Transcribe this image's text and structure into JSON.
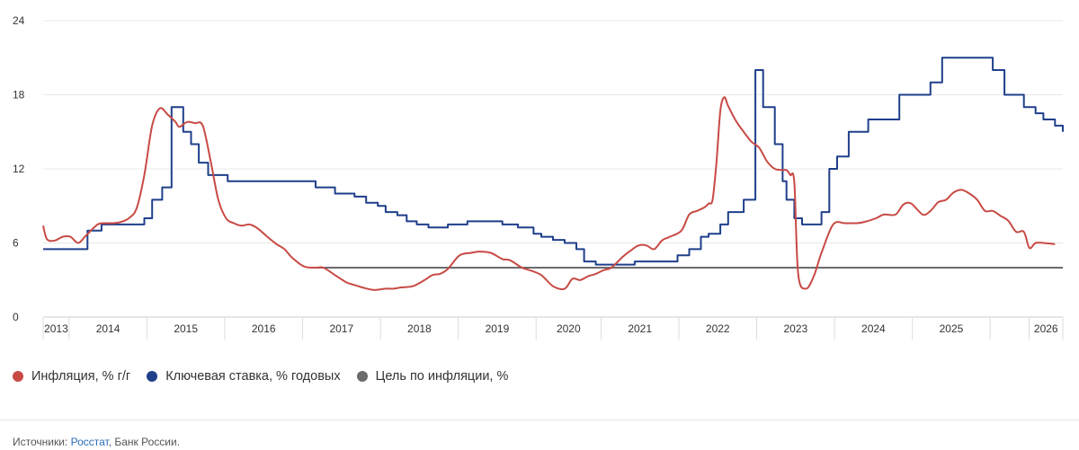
{
  "chart_data": {
    "type": "line",
    "title": "",
    "xlabel": "",
    "ylabel": "",
    "ylim": [
      0,
      24
    ],
    "xlim": [
      2013.0,
      2026.1
    ],
    "yticks": [
      "0",
      "6",
      "12",
      "18",
      "24"
    ],
    "xticks": [
      {
        "label": "2013",
        "start": 2013.0,
        "end": 2013.333
      },
      {
        "label": "2014",
        "start": 2013.333,
        "end": 2014.333
      },
      {
        "label": "2015",
        "start": 2014.333,
        "end": 2015.333
      },
      {
        "label": "2016",
        "start": 2015.333,
        "end": 2016.333
      },
      {
        "label": "2017",
        "start": 2016.333,
        "end": 2017.333
      },
      {
        "label": "2018",
        "start": 2017.333,
        "end": 2018.333
      },
      {
        "label": "2019",
        "start": 2018.333,
        "end": 2019.333
      },
      {
        "label": "2020",
        "start": 2019.333,
        "end": 2020.167
      },
      {
        "label": "2021",
        "start": 2020.167,
        "end": 2021.167
      },
      {
        "label": "2022",
        "start": 2021.167,
        "end": 2022.167
      },
      {
        "label": "2023",
        "start": 2022.167,
        "end": 2023.167
      },
      {
        "label": "2024",
        "start": 2023.167,
        "end": 2024.167
      },
      {
        "label": "2025",
        "start": 2024.167,
        "end": 2025.167
      },
      {
        "label": "2026",
        "start": 2025.667,
        "end": 2026.1
      }
    ],
    "series": [
      {
        "name": "Инфляция, % г/г",
        "color": "#c84a45",
        "style": "smooth",
        "x": [
          2013.0,
          2013.05,
          2013.15,
          2013.25,
          2013.35,
          2013.45,
          2013.55,
          2013.7,
          2013.8,
          2013.9,
          2014.0,
          2014.1,
          2014.2,
          2014.3,
          2014.4,
          2014.5,
          2014.6,
          2014.7,
          2014.75,
          2014.85,
          2014.95,
          2015.05,
          2015.15,
          2015.25,
          2015.35,
          2015.45,
          2015.55,
          2015.65,
          2015.75,
          2015.9,
          2016.0,
          2016.1,
          2016.2,
          2016.35,
          2016.5,
          2016.6,
          2016.75,
          2016.9,
          2017.0,
          2017.1,
          2017.25,
          2017.4,
          2017.5,
          2017.6,
          2017.75,
          2017.9,
          2018.0,
          2018.1,
          2018.2,
          2018.35,
          2018.5,
          2018.6,
          2018.75,
          2018.9,
          2019.0,
          2019.15,
          2019.25,
          2019.4,
          2019.55,
          2019.7,
          2019.8,
          2019.9,
          2020.0,
          2020.1,
          2020.2,
          2020.3,
          2020.45,
          2020.55,
          2020.65,
          2020.75,
          2020.85,
          2020.95,
          2021.05,
          2021.2,
          2021.3,
          2021.4,
          2021.5,
          2021.55,
          2021.6,
          2021.65,
          2021.7,
          2021.75,
          2021.8,
          2021.9,
          2022.0,
          2022.1,
          2022.2,
          2022.3,
          2022.4,
          2022.5,
          2022.55,
          2022.6,
          2022.65,
          2022.7,
          2022.8,
          2022.9,
          2023.0,
          2023.15,
          2023.3,
          2023.45,
          2023.55,
          2023.7,
          2023.8,
          2023.95,
          2024.05,
          2024.15,
          2024.3,
          2024.4,
          2024.5,
          2024.6,
          2024.7,
          2024.8,
          2024.9,
          2025.0,
          2025.1,
          2025.2,
          2025.3,
          2025.4,
          2025.5,
          2025.6,
          2025.67,
          2025.75,
          2025.85,
          2026.0
        ],
        "values": [
          7.4,
          6.3,
          6.2,
          6.5,
          6.5,
          6.0,
          6.6,
          7.5,
          7.6,
          7.6,
          7.7,
          8.0,
          8.8,
          11.5,
          15.5,
          16.9,
          16.4,
          15.8,
          15.4,
          15.8,
          15.7,
          15.5,
          12.7,
          9.5,
          8.0,
          7.6,
          7.4,
          7.5,
          7.2,
          6.4,
          5.9,
          5.5,
          4.8,
          4.1,
          4.0,
          4.0,
          3.4,
          2.8,
          2.6,
          2.4,
          2.2,
          2.3,
          2.3,
          2.4,
          2.5,
          3.0,
          3.4,
          3.5,
          3.9,
          5.0,
          5.2,
          5.3,
          5.2,
          4.7,
          4.6,
          4.0,
          3.8,
          3.4,
          2.5,
          2.3,
          3.1,
          3.0,
          3.3,
          3.5,
          3.8,
          4.0,
          4.9,
          5.4,
          5.8,
          5.8,
          5.5,
          6.2,
          6.5,
          7.0,
          8.3,
          8.6,
          8.9,
          9.2,
          9.5,
          12.5,
          16.7,
          17.8,
          17.1,
          15.9,
          15.0,
          14.2,
          13.7,
          12.6,
          12.0,
          11.9,
          11.9,
          11.5,
          10.9,
          3.5,
          2.3,
          3.3,
          5.2,
          7.5,
          7.6,
          7.6,
          7.7,
          8.0,
          8.3,
          8.3,
          9.1,
          9.2,
          8.3,
          8.6,
          9.3,
          9.5,
          10.1,
          10.3,
          10.0,
          9.5,
          8.6,
          8.6,
          8.2,
          7.8,
          6.9,
          6.9,
          5.6,
          6.0,
          6.0,
          5.9
        ]
      },
      {
        "name": "Ключевая ставка, % годовых",
        "color": "#1f3f8b",
        "style": "step",
        "x": [
          2013.0,
          2013.5,
          2013.57,
          2013.75,
          2014.2,
          2014.3,
          2014.4,
          2014.53,
          2014.65,
          2014.8,
          2014.9,
          2015.0,
          2015.12,
          2015.37,
          2015.45,
          2015.55,
          2016.0,
          2016.5,
          2016.75,
          2016.9,
          2017.0,
          2017.15,
          2017.3,
          2017.4,
          2017.55,
          2017.67,
          2017.8,
          2017.95,
          2018.2,
          2018.45,
          2018.7,
          2018.9,
          2019.1,
          2019.3,
          2019.4,
          2019.55,
          2019.7,
          2019.85,
          2019.95,
          2020.1,
          2020.25,
          2020.4,
          2020.6,
          2021.15,
          2021.3,
          2021.45,
          2021.55,
          2021.7,
          2021.8,
          2022.0,
          2022.15,
          2022.25,
          2022.4,
          2022.5,
          2022.55,
          2022.65,
          2022.75,
          2022.85,
          2023.0,
          2023.1,
          2023.2,
          2023.35,
          2023.6,
          2023.85,
          2024.0,
          2024.4,
          2024.55,
          2025.0,
          2025.2,
          2025.35,
          2025.6,
          2025.75,
          2025.85,
          2026.0,
          2026.1
        ],
        "values": [
          5.5,
          5.5,
          7.0,
          7.5,
          7.5,
          8.0,
          9.5,
          10.5,
          17.0,
          15.0,
          14.0,
          12.5,
          11.5,
          11.0,
          11.0,
          11.0,
          11.0,
          10.5,
          10.0,
          10.0,
          9.75,
          9.25,
          9.0,
          8.5,
          8.25,
          7.75,
          7.5,
          7.25,
          7.5,
          7.75,
          7.75,
          7.5,
          7.25,
          6.75,
          6.5,
          6.25,
          6.0,
          5.5,
          4.5,
          4.25,
          4.25,
          4.25,
          4.5,
          5.0,
          5.5,
          6.5,
          6.75,
          7.5,
          8.5,
          9.5,
          20.0,
          17.0,
          14.0,
          11.0,
          9.5,
          8.0,
          7.5,
          7.5,
          8.5,
          12.0,
          13.0,
          15.0,
          16.0,
          16.0,
          18.0,
          19.0,
          21.0,
          21.0,
          20.0,
          18.0,
          17.0,
          16.5,
          16.0,
          15.5,
          15.0
        ]
      },
      {
        "name": "Цель по инфляции, %",
        "color": "#6b6b6b",
        "style": "flat",
        "x": [
          2016.5,
          2026.1
        ],
        "values": [
          4.0,
          4.0
        ]
      }
    ],
    "legend": "bottom-left"
  },
  "legend_items": [
    {
      "label": "Инфляция, % г/г",
      "color": "#c84a45"
    },
    {
      "label": "Ключевая ставка, % годовых",
      "color": "#1f3f8b"
    },
    {
      "label": "Цель по инфляции, %",
      "color": "#6b6b6b"
    }
  ],
  "source": {
    "prefix": "Источники:",
    "link_text": "Росстат",
    "suffix": ", Банк России."
  }
}
